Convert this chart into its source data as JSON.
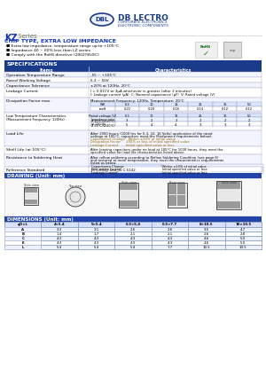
{
  "bg_color": "#ffffff",
  "blue_dark": "#1a3a8a",
  "blue_mid": "#2244aa",
  "blue_light": "#4466cc",
  "kz_color": "#1133bb",
  "subtitle_color": "#1133bb",
  "features": [
    "Extra low impedance, temperature range up to +105°C",
    "Impedance 40 ~ 60% less than LZ series",
    "Comply with the RoHS directive (2002/95/EC)"
  ],
  "df_cols": [
    "WV",
    "6.3",
    "10",
    "16",
    "25",
    "35",
    "50"
  ],
  "df_row1": [
    "(V)",
    "6.3",
    "10",
    "16",
    "25",
    "35",
    "50"
  ],
  "df_tand": [
    "tanδ",
    "0.22",
    "0.20",
    "0.16",
    "0.14",
    "0.12",
    "0.12"
  ],
  "lt_head": [
    "Rated voltage (V)",
    "6.3",
    "10",
    "16",
    "25",
    "35",
    "50"
  ],
  "lt_r1_label": "Impedance ratio\nZ(-25°C)/Z(20°C)",
  "lt_r1_vals": [
    "3",
    "2",
    "2",
    "2",
    "2",
    "2"
  ],
  "lt_r2_label": "at 120 Hz\nZ(-55°C)/Z(20°C)",
  "lt_r2_vals": [
    "5",
    "4",
    "4",
    "3",
    "3",
    "3"
  ],
  "dim_cols": [
    "φD×L",
    "4×5.4",
    "5×5.4",
    "6.3×5.4",
    "6.3×7.7",
    "8×10.5",
    "10×10.5"
  ],
  "dim_A": [
    "3.3",
    "3.1",
    "2.6",
    "2.6",
    "3.5",
    "4.7"
  ],
  "dim_B": [
    "1.4",
    "1.7",
    "2.1",
    "2.1",
    "2.6",
    "2.8"
  ],
  "dim_C": [
    "4.3",
    "4.3",
    "4.3",
    "4.3",
    "4.6",
    "5.0"
  ],
  "dim_E": [
    "4.3",
    "4.3",
    "4.3",
    "4.3",
    "4.6",
    "5.0"
  ],
  "dim_L": [
    "5.4",
    "5.4",
    "5.4",
    "7.7",
    "10.5",
    "10.5"
  ]
}
